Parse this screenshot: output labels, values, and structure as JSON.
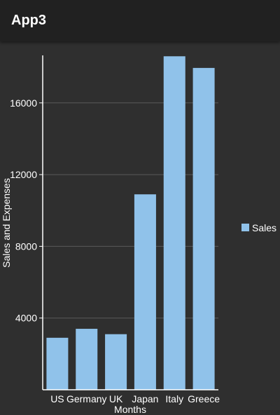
{
  "app": {
    "title": "App3"
  },
  "chart_data": {
    "type": "bar",
    "categories": [
      "US",
      "Germany",
      "UK",
      "Japan",
      "Italy",
      "Greece"
    ],
    "series": [
      {
        "name": "Sales",
        "values": [
          2900,
          3400,
          3100,
          10900,
          18600,
          17950
        ]
      }
    ],
    "xlabel": "Months",
    "ylabel": "Sales and Expenses",
    "ylim": [
      0,
      18650
    ],
    "yticks": [
      4000,
      8000,
      12000,
      16000
    ],
    "grid": true,
    "legend": "right",
    "colors": {
      "bar": "#90c2ea",
      "axis": "#ffffff",
      "grid": "#5a5a5a"
    }
  }
}
